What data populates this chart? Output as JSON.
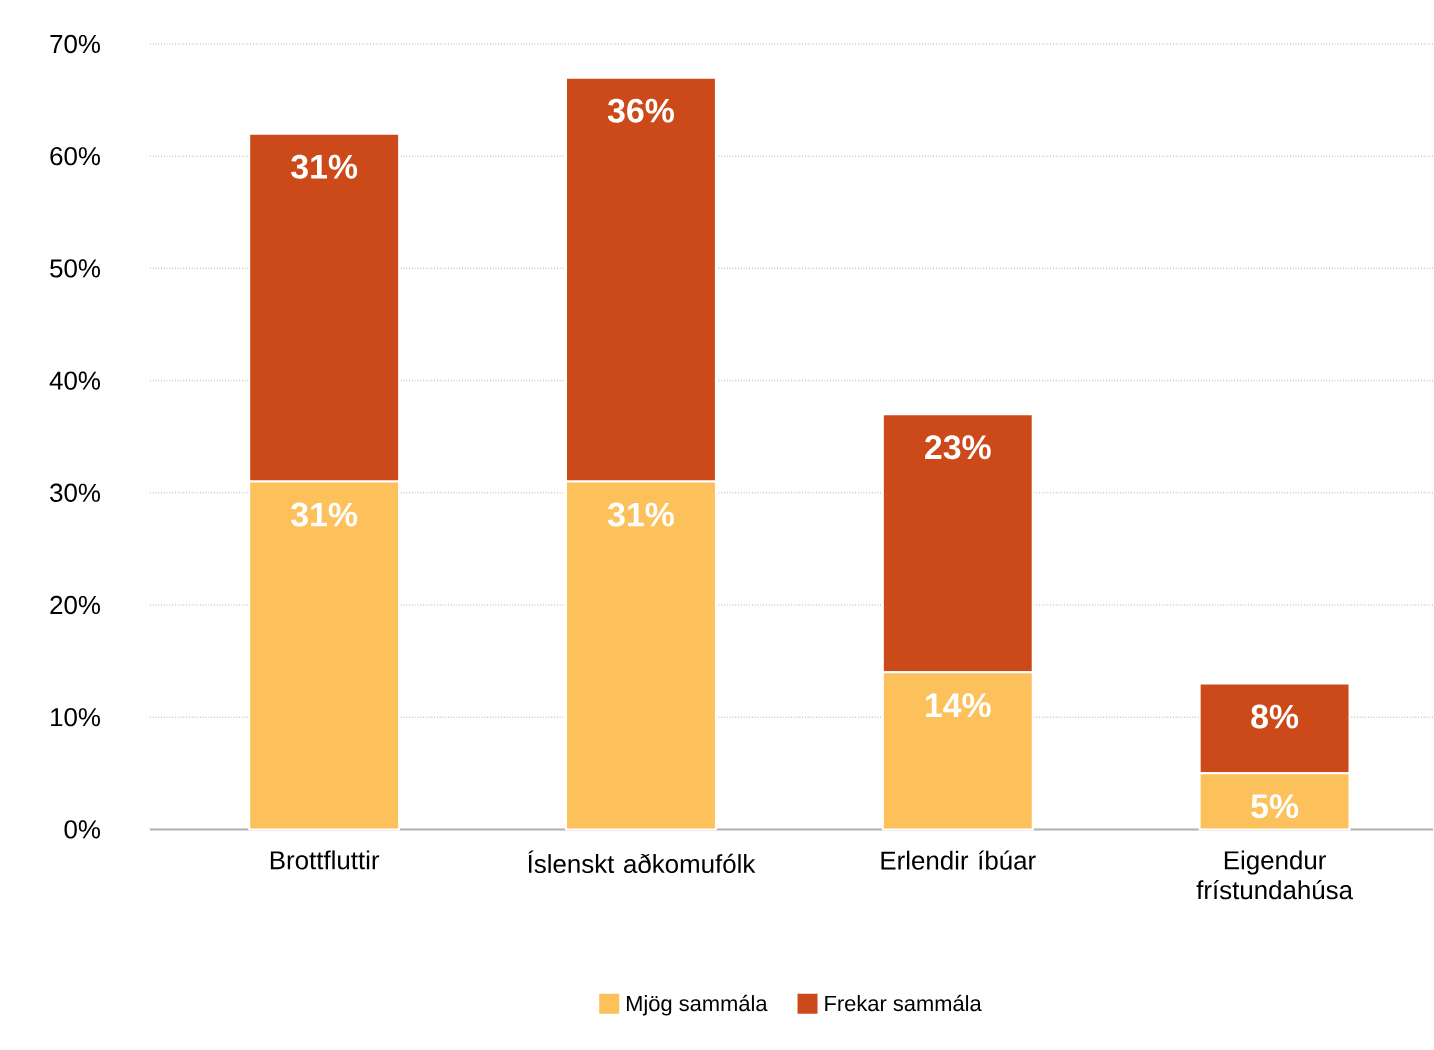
{
  "chart_data": {
    "type": "bar",
    "stacked": true,
    "categories": [
      "Brottfluttir",
      "Íslenskt aðkomufólk",
      "Erlendir íbúar",
      "Eigendur frístundahúsa"
    ],
    "series": [
      {
        "name": "Mjög sammála",
        "color": "#fdc15c",
        "values": [
          31,
          31,
          14,
          5
        ],
        "value_labels": [
          "31%",
          "31%",
          "14%",
          "5%"
        ]
      },
      {
        "name": "Frekar sammála",
        "color": "#cc4a1a",
        "values": [
          31,
          36,
          23,
          8
        ],
        "value_labels": [
          "31%",
          "36%",
          "23%",
          "8%"
        ]
      }
    ],
    "ylim": [
      0,
      70
    ],
    "yticks": [
      {
        "value": 0,
        "label": "0%"
      },
      {
        "value": 10,
        "label": "10%"
      },
      {
        "value": 20,
        "label": "20%"
      },
      {
        "value": 30,
        "label": "30%"
      },
      {
        "value": 40,
        "label": "40%"
      },
      {
        "value": 50,
        "label": "50%"
      },
      {
        "value": 60,
        "label": "60%"
      },
      {
        "value": 70,
        "label": "70%"
      }
    ],
    "grid": "y",
    "legend": "bottom"
  }
}
